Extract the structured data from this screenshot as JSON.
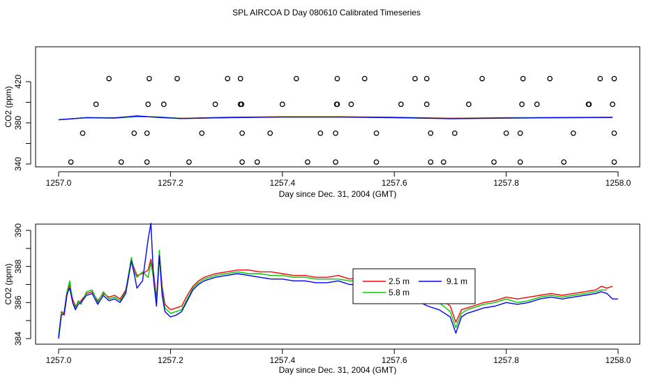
{
  "title": "SPL AIRCOA D  Day 080610  Calibrated Timeseries",
  "colors": {
    "red": "#ff0000",
    "green": "#00cc00",
    "blue": "#0000ff",
    "axis": "#000000"
  },
  "chart_data": [
    {
      "type": "scatter",
      "xlabel": "Day since Dec. 31, 2004 (GMT)",
      "ylabel": "CO2 (ppm)",
      "xlim": [
        1257.0,
        1258.0
      ],
      "ylim": [
        340,
        445
      ],
      "xticks": [
        "1257.0",
        "1257.2",
        "1257.4",
        "1257.6",
        "1257.8",
        "1258.0"
      ],
      "yticks": [
        "340",
        "380",
        "420"
      ],
      "markers": [
        [
          1257.022,
          342
        ],
        [
          1257.112,
          342
        ],
        [
          1257.158,
          342
        ],
        [
          1257.233,
          342
        ],
        [
          1257.328,
          342
        ],
        [
          1257.355,
          342
        ],
        [
          1257.445,
          342
        ],
        [
          1257.495,
          342
        ],
        [
          1257.568,
          342
        ],
        [
          1257.665,
          342
        ],
        [
          1257.688,
          342
        ],
        [
          1257.778,
          342
        ],
        [
          1257.825,
          342
        ],
        [
          1257.903,
          342
        ],
        [
          1257.993,
          342
        ],
        [
          1257.043,
          370
        ],
        [
          1257.135,
          370
        ],
        [
          1257.158,
          370
        ],
        [
          1257.256,
          370
        ],
        [
          1257.328,
          370
        ],
        [
          1257.378,
          370
        ],
        [
          1257.468,
          370
        ],
        [
          1257.495,
          370
        ],
        [
          1257.568,
          370
        ],
        [
          1257.665,
          370
        ],
        [
          1257.708,
          370
        ],
        [
          1257.8,
          370
        ],
        [
          1257.825,
          370
        ],
        [
          1257.92,
          370
        ],
        [
          1257.993,
          370
        ],
        [
          1257.067,
          398
        ],
        [
          1257.16,
          398
        ],
        [
          1257.188,
          398
        ],
        [
          1257.28,
          398
        ],
        [
          1257.325,
          398
        ],
        [
          1257.327,
          398
        ],
        [
          1257.4,
          398
        ],
        [
          1257.497,
          398
        ],
        [
          1257.498,
          398
        ],
        [
          1257.523,
          398
        ],
        [
          1257.612,
          398
        ],
        [
          1257.658,
          398
        ],
        [
          1257.733,
          398
        ],
        [
          1257.828,
          398
        ],
        [
          1257.855,
          398
        ],
        [
          1257.947,
          398
        ],
        [
          1257.948,
          398
        ],
        [
          1257.99,
          398
        ],
        [
          1257.09,
          423
        ],
        [
          1257.162,
          423
        ],
        [
          1257.212,
          423
        ],
        [
          1257.302,
          423
        ],
        [
          1257.325,
          423
        ],
        [
          1257.425,
          423
        ],
        [
          1257.498,
          423
        ],
        [
          1257.547,
          423
        ],
        [
          1257.637,
          423
        ],
        [
          1257.658,
          423
        ],
        [
          1257.757,
          423
        ],
        [
          1257.83,
          423
        ],
        [
          1257.878,
          423
        ],
        [
          1257.968,
          423
        ],
        [
          1257.993,
          423
        ]
      ],
      "series": [
        {
          "color": "red",
          "x": [
            1257.0,
            1257.05,
            1257.1,
            1257.14,
            1257.18,
            1257.22,
            1257.3,
            1257.4,
            1257.5,
            1257.6,
            1257.7,
            1257.8,
            1257.9,
            1257.99
          ],
          "y": [
            383,
            385,
            385,
            386.5,
            385.5,
            384.5,
            385.5,
            386,
            386,
            385.5,
            384.5,
            385,
            385.3,
            385.5
          ]
        },
        {
          "color": "green",
          "x": [
            1257.0,
            1257.05,
            1257.1,
            1257.14,
            1257.18,
            1257.22,
            1257.3,
            1257.4,
            1257.5,
            1257.6,
            1257.7,
            1257.8,
            1257.9,
            1257.99
          ],
          "y": [
            383,
            385.2,
            384.8,
            386,
            385.8,
            384.3,
            385.2,
            385.8,
            385.8,
            385.3,
            384.3,
            384.8,
            385.1,
            385.4
          ]
        },
        {
          "color": "blue",
          "x": [
            1257.0,
            1257.05,
            1257.1,
            1257.14,
            1257.18,
            1257.22,
            1257.3,
            1257.4,
            1257.5,
            1257.6,
            1257.7,
            1257.8,
            1257.9,
            1257.99
          ],
          "y": [
            383,
            385,
            384.6,
            386.8,
            385.2,
            384.2,
            385,
            385.6,
            385.6,
            385.1,
            384.1,
            384.6,
            385,
            385.2
          ]
        }
      ]
    },
    {
      "type": "line",
      "xlabel": "Day since Dec. 31, 2004 (GMT)",
      "ylabel": "CO2 (ppm)",
      "xlim": [
        1257.0,
        1258.0
      ],
      "ylim": [
        384,
        390.5
      ],
      "xticks": [
        "1257.0",
        "1257.2",
        "1257.4",
        "1257.6",
        "1257.8",
        "1258.0"
      ],
      "yticks": [
        "384",
        "386",
        "388",
        "390"
      ],
      "legend": {
        "position": "center-right",
        "labels": [
          "2.5 m",
          "9.1 m",
          "5.8 m"
        ]
      },
      "series": [
        {
          "name": "2.5 m",
          "color": "red",
          "x": [
            1257.0,
            1257.005,
            1257.01,
            1257.015,
            1257.02,
            1257.025,
            1257.03,
            1257.035,
            1257.04,
            1257.05,
            1257.06,
            1257.07,
            1257.08,
            1257.09,
            1257.1,
            1257.11,
            1257.12,
            1257.13,
            1257.135,
            1257.14,
            1257.15,
            1257.16,
            1257.165,
            1257.17,
            1257.175,
            1257.18,
            1257.185,
            1257.19,
            1257.2,
            1257.21,
            1257.22,
            1257.23,
            1257.24,
            1257.25,
            1257.26,
            1257.28,
            1257.3,
            1257.32,
            1257.34,
            1257.36,
            1257.38,
            1257.4,
            1257.42,
            1257.44,
            1257.46,
            1257.48,
            1257.5,
            1257.52,
            1257.54,
            1257.56,
            1257.58,
            1257.6,
            1257.62,
            1257.64,
            1257.66,
            1257.68,
            1257.7,
            1257.71,
            1257.72,
            1257.73,
            1257.74,
            1257.76,
            1257.78,
            1257.8,
            1257.82,
            1257.84,
            1257.86,
            1257.88,
            1257.9,
            1257.92,
            1257.94,
            1257.96,
            1257.97,
            1257.98,
            1257.99
          ],
          "y": [
            384.1,
            385.5,
            385.3,
            386.4,
            387.0,
            386.2,
            385.8,
            386.0,
            386.1,
            386.5,
            386.6,
            386.1,
            386.5,
            386.3,
            386.4,
            386.2,
            386.7,
            388.4,
            387.9,
            387.5,
            387.6,
            387.8,
            388.4,
            387.6,
            386.2,
            388.8,
            386.9,
            385.9,
            385.6,
            385.7,
            385.8,
            386.4,
            386.9,
            387.2,
            387.4,
            387.6,
            387.7,
            387.8,
            387.8,
            387.7,
            387.7,
            387.6,
            387.5,
            387.5,
            387.4,
            387.4,
            387.5,
            387.3,
            387.4,
            387.3,
            387.2,
            387.1,
            386.9,
            386.7,
            386.5,
            386.3,
            385.8,
            384.9,
            385.6,
            385.7,
            385.8,
            386.0,
            386.1,
            386.3,
            386.2,
            386.3,
            386.4,
            386.5,
            386.4,
            386.5,
            386.6,
            386.7,
            386.9,
            386.8,
            386.9
          ]
        },
        {
          "name": "5.8 m",
          "color": "green",
          "x": [
            1257.0,
            1257.005,
            1257.01,
            1257.015,
            1257.02,
            1257.025,
            1257.03,
            1257.035,
            1257.04,
            1257.05,
            1257.06,
            1257.07,
            1257.08,
            1257.09,
            1257.1,
            1257.11,
            1257.12,
            1257.13,
            1257.135,
            1257.14,
            1257.15,
            1257.16,
            1257.165,
            1257.17,
            1257.175,
            1257.18,
            1257.185,
            1257.19,
            1257.2,
            1257.21,
            1257.22,
            1257.23,
            1257.24,
            1257.25,
            1257.26,
            1257.28,
            1257.3,
            1257.32,
            1257.34,
            1257.36,
            1257.38,
            1257.4,
            1257.42,
            1257.44,
            1257.46,
            1257.48,
            1257.5,
            1257.52,
            1257.54,
            1257.56,
            1257.58,
            1257.6,
            1257.62,
            1257.64,
            1257.66,
            1257.68,
            1257.7,
            1257.71,
            1257.72,
            1257.73,
            1257.74,
            1257.76,
            1257.78,
            1257.8,
            1257.82,
            1257.84,
            1257.86,
            1257.88,
            1257.9,
            1257.92,
            1257.94,
            1257.96,
            1257.97,
            1257.98
          ],
          "y": [
            384.2,
            385.4,
            385.5,
            386.6,
            387.2,
            386.0,
            385.7,
            386.1,
            385.9,
            386.6,
            386.7,
            386.0,
            386.6,
            386.2,
            386.3,
            386.1,
            386.6,
            388.5,
            387.7,
            387.4,
            387.7,
            387.4,
            388.2,
            387.3,
            386.0,
            388.9,
            386.6,
            385.7,
            385.4,
            385.5,
            385.6,
            386.2,
            386.8,
            387.1,
            387.3,
            387.5,
            387.6,
            387.7,
            387.6,
            387.6,
            387.5,
            387.5,
            387.4,
            387.4,
            387.3,
            387.3,
            387.3,
            387.2,
            387.2,
            387.1,
            387.0,
            386.9,
            386.7,
            386.5,
            386.2,
            386.0,
            385.5,
            384.6,
            385.4,
            385.6,
            385.7,
            385.9,
            386.0,
            386.2,
            386.0,
            386.1,
            386.3,
            386.4,
            386.3,
            386.4,
            386.5,
            386.6,
            386.7,
            386.7
          ]
        },
        {
          "name": "9.1 m",
          "color": "blue",
          "x": [
            1257.0,
            1257.005,
            1257.01,
            1257.015,
            1257.02,
            1257.025,
            1257.03,
            1257.035,
            1257.04,
            1257.05,
            1257.06,
            1257.07,
            1257.08,
            1257.09,
            1257.1,
            1257.11,
            1257.12,
            1257.13,
            1257.135,
            1257.14,
            1257.15,
            1257.16,
            1257.165,
            1257.17,
            1257.175,
            1257.18,
            1257.185,
            1257.19,
            1257.2,
            1257.21,
            1257.22,
            1257.23,
            1257.24,
            1257.25,
            1257.26,
            1257.28,
            1257.3,
            1257.32,
            1257.34,
            1257.36,
            1257.38,
            1257.4,
            1257.42,
            1257.44,
            1257.46,
            1257.48,
            1257.5,
            1257.52,
            1257.54,
            1257.56,
            1257.58,
            1257.6,
            1257.62,
            1257.64,
            1257.66,
            1257.68,
            1257.7,
            1257.71,
            1257.72,
            1257.73,
            1257.74,
            1257.76,
            1257.78,
            1257.8,
            1257.82,
            1257.84,
            1257.86,
            1257.88,
            1257.9,
            1257.92,
            1257.94,
            1257.96,
            1257.97,
            1257.98,
            1257.99,
            1258.0
          ],
          "y": [
            384.0,
            385.3,
            385.4,
            386.5,
            386.8,
            386.0,
            385.6,
            385.9,
            386.0,
            386.4,
            386.5,
            385.9,
            386.4,
            386.1,
            386.2,
            386.0,
            386.5,
            388.3,
            387.6,
            386.8,
            387.2,
            389.5,
            390.4,
            387.2,
            385.8,
            388.6,
            386.4,
            385.5,
            385.2,
            385.3,
            385.5,
            386.1,
            386.7,
            387.0,
            387.2,
            387.4,
            387.5,
            387.6,
            387.5,
            387.4,
            387.3,
            387.3,
            387.2,
            387.2,
            387.1,
            387.1,
            387.2,
            387.0,
            387.0,
            386.9,
            386.7,
            386.6,
            386.4,
            386.1,
            385.8,
            385.6,
            385.2,
            384.3,
            385.2,
            385.4,
            385.5,
            385.7,
            385.8,
            386.0,
            385.9,
            386.0,
            386.2,
            386.3,
            386.2,
            386.3,
            386.4,
            386.5,
            386.6,
            386.5,
            386.2,
            386.2
          ]
        }
      ]
    }
  ]
}
